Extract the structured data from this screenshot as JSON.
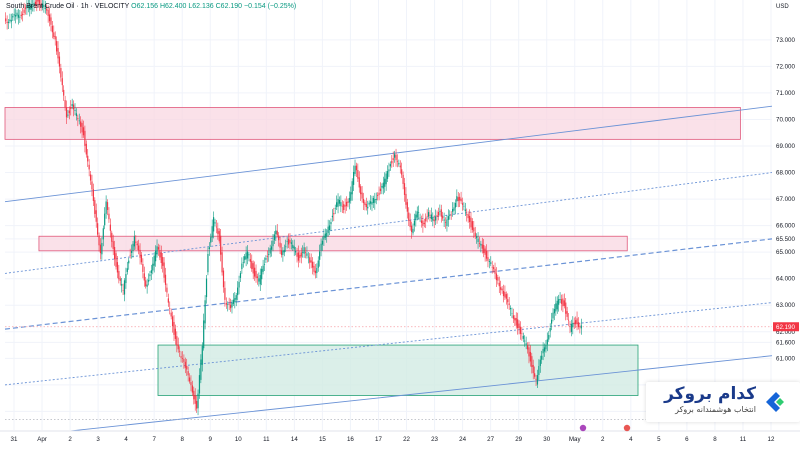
{
  "header": {
    "symbol": "South Brent Crude Oil · 1h · VELOCITY",
    "ohlc": "O62.156  H62.400  L62.136  C62.190  −0.154 (−0.25%)",
    "currency": "USD"
  },
  "brand": {
    "title": "کدام بروکر",
    "subtitle": "انتخاب هوشمندانه بروکر",
    "accent": "#1565d8"
  },
  "colors": {
    "bull": "#089981",
    "bear": "#f23645",
    "trend": "#6b93d6",
    "resistance_fill": "#f8d7e1",
    "resistance_border": "#e0577a",
    "support_fill": "#d2ebe3",
    "support_border": "#25a276",
    "last_price_bg": "#f23645"
  },
  "chart_data": {
    "type": "candlestick",
    "ylim": [
      58.3,
      74.5
    ],
    "y_ticks": [
      {
        "v": 73.0,
        "t": "73.000"
      },
      {
        "v": 72.0,
        "t": "72.000"
      },
      {
        "v": 71.0,
        "t": "71.000"
      },
      {
        "v": 70.0,
        "t": "70.000"
      },
      {
        "v": 69.0,
        "t": "69.000"
      },
      {
        "v": 68.0,
        "t": "68.000"
      },
      {
        "v": 67.0,
        "t": "67.000"
      },
      {
        "v": 66.0,
        "t": "66.000"
      },
      {
        "v": 65.5,
        "t": "65.500"
      },
      {
        "v": 65.0,
        "t": "65.000"
      },
      {
        "v": 64.0,
        "t": "64.000"
      },
      {
        "v": 63.0,
        "t": "63.000"
      },
      {
        "v": 62.0,
        "t": "62.000"
      },
      {
        "v": 61.6,
        "t": "61.600"
      },
      {
        "v": 61.0,
        "t": "61.000"
      },
      {
        "v": 60.0,
        "t": "60.000"
      },
      {
        "v": 59.0,
        "t": "59.000"
      }
    ],
    "x_ticks": [
      "31",
      "Apr",
      "2",
      "3",
      "4",
      "7",
      "8",
      "9",
      "10",
      "11",
      "14",
      "15",
      "16",
      "17",
      "22",
      "23",
      "24",
      "27",
      "29",
      "30",
      "May",
      "2",
      "4",
      "5",
      "6",
      "8",
      "11",
      "12"
    ],
    "last_price": 62.19,
    "last_price_label": "62.190",
    "series_path": [
      [
        0,
        73.8
      ],
      [
        1,
        73.7
      ],
      [
        2,
        73.9
      ],
      [
        3,
        74.0
      ],
      [
        4,
        74.2
      ],
      [
        5,
        74.3
      ],
      [
        6,
        74.5
      ],
      [
        7,
        74.2
      ],
      [
        8,
        73.8
      ],
      [
        9,
        73.0
      ],
      [
        10,
        71.5
      ],
      [
        11,
        70.2
      ],
      [
        12,
        70.5
      ],
      [
        13,
        70.0
      ],
      [
        14,
        69.5
      ],
      [
        15,
        68.0
      ],
      [
        16,
        66.5
      ],
      [
        17,
        65.0
      ],
      [
        18,
        66.8
      ],
      [
        19,
        65.5
      ],
      [
        20,
        64.2
      ],
      [
        21,
        63.5
      ],
      [
        22,
        64.8
      ],
      [
        23,
        65.5
      ],
      [
        24,
        64.8
      ],
      [
        25,
        63.8
      ],
      [
        26,
        64.2
      ],
      [
        27,
        65.3
      ],
      [
        28,
        64.5
      ],
      [
        29,
        63.0
      ],
      [
        30,
        62.0
      ],
      [
        31,
        61.2
      ],
      [
        32,
        60.6
      ],
      [
        33,
        60.1
      ],
      [
        34,
        59.0
      ],
      [
        35,
        61.5
      ],
      [
        36,
        65.0
      ],
      [
        37,
        66.2
      ],
      [
        38,
        65.5
      ],
      [
        39,
        63.2
      ],
      [
        40,
        62.8
      ],
      [
        41,
        63.5
      ],
      [
        42,
        64.5
      ],
      [
        43,
        65.0
      ],
      [
        44,
        64.3
      ],
      [
        45,
        63.9
      ],
      [
        46,
        64.6
      ],
      [
        47,
        65.2
      ],
      [
        48,
        65.7
      ],
      [
        49,
        65.0
      ],
      [
        50,
        65.4
      ],
      [
        51,
        65.2
      ],
      [
        52,
        64.8
      ],
      [
        53,
        65.1
      ],
      [
        54,
        64.6
      ],
      [
        55,
        64.3
      ],
      [
        56,
        65.2
      ],
      [
        57,
        65.8
      ],
      [
        58,
        66.4
      ],
      [
        59,
        66.9
      ],
      [
        60,
        66.7
      ],
      [
        61,
        67.0
      ],
      [
        62,
        68.2
      ],
      [
        63,
        67.3
      ],
      [
        64,
        66.6
      ],
      [
        65,
        66.9
      ],
      [
        66,
        67.2
      ],
      [
        67,
        67.5
      ],
      [
        68,
        68.2
      ],
      [
        69,
        68.7
      ],
      [
        70,
        68.1
      ],
      [
        71,
        66.9
      ],
      [
        72,
        65.7
      ],
      [
        73,
        66.5
      ],
      [
        74,
        66.1
      ],
      [
        75,
        66.4
      ],
      [
        76,
        66.2
      ],
      [
        77,
        66.6
      ],
      [
        78,
        66.0
      ],
      [
        79,
        66.5
      ],
      [
        80,
        67.1
      ],
      [
        81,
        66.7
      ],
      [
        82,
        66.4
      ],
      [
        83,
        65.7
      ],
      [
        84,
        65.3
      ],
      [
        85,
        65.0
      ],
      [
        86,
        64.5
      ],
      [
        87,
        64.0
      ],
      [
        88,
        63.6
      ],
      [
        89,
        63.0
      ],
      [
        90,
        62.6
      ],
      [
        91,
        62.1
      ],
      [
        92,
        61.6
      ],
      [
        93,
        61.0
      ],
      [
        94,
        60.1
      ],
      [
        95,
        61.1
      ],
      [
        96,
        61.8
      ],
      [
        97,
        62.6
      ],
      [
        98,
        63.3
      ],
      [
        99,
        63.0
      ],
      [
        100,
        62.1
      ],
      [
        101,
        62.4
      ],
      [
        102,
        62.19
      ]
    ],
    "index_range": [
      0,
      102
    ],
    "resistance_zones": [
      {
        "i0": 0,
        "i1": 130,
        "y0": 69.25,
        "y1": 70.45
      },
      {
        "i0": 10,
        "i1": 110,
        "y0": 65.05,
        "y1": 65.6
      }
    ],
    "support_zones": [
      {
        "i0": 25,
        "i1": 104,
        "y0": 59.6,
        "y1": 61.5
      }
    ],
    "trend_lines": [
      {
        "i0": 0,
        "v0": 58.0,
        "i1": 126,
        "v1": 61.1,
        "style": "solid"
      },
      {
        "i0": 0,
        "v0": 60.0,
        "i1": 126,
        "v1": 63.1,
        "style": "dotted"
      },
      {
        "i0": 0,
        "v0": 62.1,
        "i1": 126,
        "v1": 65.5,
        "style": "dashed"
      },
      {
        "i0": 0,
        "v0": 64.2,
        "i1": 126,
        "v1": 68.0,
        "style": "dotted"
      },
      {
        "i0": 0,
        "v0": 66.9,
        "i1": 126,
        "v1": 70.5,
        "style": "solid"
      }
    ],
    "h_guides": [
      {
        "v": 62.19,
        "style": "last"
      },
      {
        "v": 58.7,
        "style": "dotted"
      }
    ]
  }
}
